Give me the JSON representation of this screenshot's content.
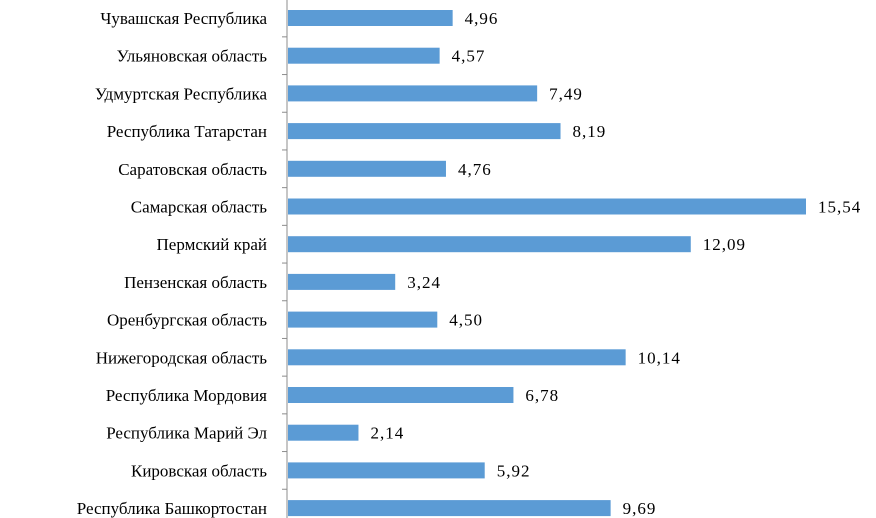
{
  "colors": {
    "bar": "#5b9bd5",
    "axis": "#8c8c8c",
    "text": "#000000"
  },
  "chart_data": {
    "type": "bar",
    "orientation": "horizontal",
    "title": "",
    "xlabel": "",
    "ylabel": "",
    "grid": false,
    "xlim": [
      0,
      15.54
    ],
    "categories": [
      "Чувашская Республика",
      "Ульяновская область",
      "Удмуртская Республика",
      "Республика Татарстан",
      "Саратовская область",
      "Самарская область",
      "Пермский край",
      "Пензенская область",
      "Оренбургская область",
      "Нижегородская область",
      "Республика Мордовия",
      "Республика Марий Эл",
      "Кировская область",
      "Республика Башкортостан"
    ],
    "values": [
      4.96,
      4.57,
      7.49,
      8.19,
      4.76,
      15.54,
      12.09,
      3.24,
      4.5,
      10.14,
      6.78,
      2.14,
      5.92,
      9.69
    ],
    "value_labels": [
      "4,96",
      "4,57",
      "7,49",
      "8,19",
      "4,76",
      "15,54",
      "12,09",
      "3,24",
      "4,50",
      "10,14",
      "6,78",
      "2,14",
      "5,92",
      "9,69"
    ]
  }
}
